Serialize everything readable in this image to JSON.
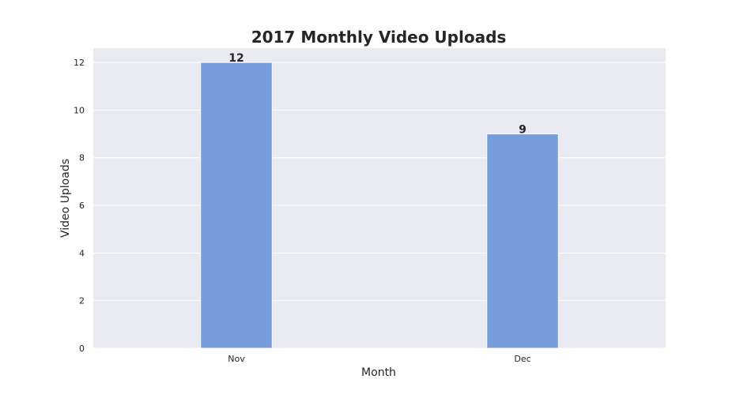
{
  "chart_data": {
    "type": "bar",
    "title": "2017 Monthly Video Uploads",
    "xlabel": "Month",
    "ylabel": "Video Uploads",
    "categories": [
      "Nov",
      "Dec"
    ],
    "values": [
      12,
      9
    ],
    "data_labels": [
      "12",
      "9"
    ],
    "ylim": [
      0,
      12.6
    ],
    "yticks": [
      0,
      2,
      4,
      6,
      8,
      10,
      12
    ],
    "grid": true,
    "legend": "none",
    "colors": {
      "bar": "#779ddd",
      "plot_background": "#eaeaf2",
      "grid": "#ffffff",
      "text": "#262626"
    }
  }
}
